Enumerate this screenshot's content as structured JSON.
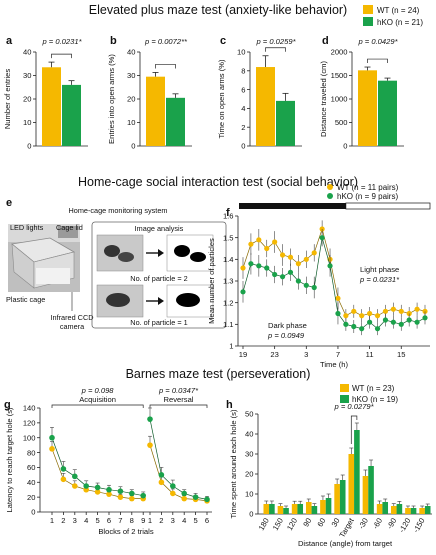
{
  "colors": {
    "wt": "#f5b800",
    "hko": "#1aa24b",
    "axis": "#222222",
    "darkbar": "#111111"
  },
  "sections": {
    "epm": "Elevated plus maze test (anxiety-like behavior)",
    "home": "Home-cage social interaction test (social behavior)",
    "barnes": "Barnes maze test (perseveration)"
  },
  "legend_top": {
    "wt": "WT (n = 24)",
    "hko": "hKO (n = 21)"
  },
  "legend_f": {
    "wt": "WT (n = 11 pairs)",
    "hko": "hKO (n = 9 pairs)"
  },
  "legend_h": {
    "wt": "WT (n = 23)",
    "hko": "hKO (n = 19)"
  },
  "panel_e": {
    "label": "e",
    "system": "Home-cage monitoring system",
    "analysis": "Image analysis",
    "led": "LED lights",
    "lid": "Cage lid",
    "cage": "Plastic cage",
    "camera1": "Infrared CCD",
    "camera2": "camera",
    "part2": "No. of particle = 2",
    "part1": "No. of particle = 1"
  },
  "chart_data": [
    {
      "panel": "a",
      "type": "bar",
      "ylabel": "Number of entries",
      "ylim": [
        0,
        40
      ],
      "yticks": [
        0,
        10,
        20,
        30,
        40
      ],
      "series": [
        {
          "name": "WT",
          "mean": 33.5,
          "sem": 2.2
        },
        {
          "name": "hKO",
          "mean": 26.0,
          "sem": 1.8
        }
      ],
      "pvalue": "p = 0.0231*"
    },
    {
      "panel": "b",
      "type": "bar",
      "ylabel": "Entries into open arms (%)",
      "ylim": [
        0,
        40
      ],
      "yticks": [
        0,
        10,
        20,
        30,
        40
      ],
      "series": [
        {
          "name": "WT",
          "mean": 29.5,
          "sem": 1.8
        },
        {
          "name": "hKO",
          "mean": 20.5,
          "sem": 1.7
        }
      ],
      "pvalue": "p = 0.0072**"
    },
    {
      "panel": "c",
      "type": "bar",
      "ylabel": "Time on open arms (%)",
      "ylim": [
        0,
        10
      ],
      "yticks": [
        0,
        2,
        4,
        6,
        8,
        10
      ],
      "series": [
        {
          "name": "WT",
          "mean": 8.4,
          "sem": 1.2
        },
        {
          "name": "hKO",
          "mean": 4.8,
          "sem": 0.8
        }
      ],
      "pvalue": "p = 0.0259*"
    },
    {
      "panel": "d",
      "type": "bar",
      "ylabel": "Distance traveled (cm)",
      "ylim": [
        0,
        2000
      ],
      "yticks": [
        0,
        500,
        1000,
        1500,
        2000
      ],
      "series": [
        {
          "name": "WT",
          "mean": 1610,
          "sem": 70
        },
        {
          "name": "hKO",
          "mean": 1390,
          "sem": 55
        }
      ],
      "pvalue": "p = 0.0429*"
    },
    {
      "panel": "f",
      "type": "line",
      "ylabel": "Mean number of particles",
      "xlabel": "Time (h)",
      "ylim": [
        1.0,
        1.6
      ],
      "yticks": [
        1.0,
        1.1,
        1.2,
        1.3,
        1.4,
        1.5,
        1.6
      ],
      "xticks": [
        19,
        23,
        3,
        7,
        11,
        15
      ],
      "x": [
        19,
        20,
        21,
        22,
        23,
        24,
        1,
        2,
        3,
        4,
        5,
        6,
        7,
        8,
        9,
        10,
        11,
        12,
        13,
        14,
        15,
        16,
        17,
        18
      ],
      "dark_phase": [
        0,
        13
      ],
      "annotations": {
        "light": "Light phase",
        "light_p": "p = 0.0231*",
        "dark": "Dark phase",
        "dark_p": "p = 0.0949"
      },
      "series": [
        {
          "name": "WT",
          "values": [
            1.36,
            1.47,
            1.49,
            1.45,
            1.48,
            1.42,
            1.41,
            1.38,
            1.4,
            1.43,
            1.54,
            1.4,
            1.22,
            1.14,
            1.16,
            1.14,
            1.15,
            1.14,
            1.16,
            1.17,
            1.16,
            1.15,
            1.17,
            1.16
          ],
          "err": [
            0.05,
            0.05,
            0.05,
            0.04,
            0.05,
            0.05,
            0.04,
            0.04,
            0.04,
            0.04,
            0.04,
            0.05,
            0.05,
            0.03,
            0.03,
            0.03,
            0.03,
            0.03,
            0.03,
            0.03,
            0.03,
            0.03,
            0.03,
            0.03
          ]
        },
        {
          "name": "hKO",
          "values": [
            1.25,
            1.38,
            1.37,
            1.36,
            1.33,
            1.32,
            1.34,
            1.3,
            1.28,
            1.27,
            1.5,
            1.37,
            1.15,
            1.1,
            1.09,
            1.08,
            1.11,
            1.08,
            1.12,
            1.11,
            1.1,
            1.12,
            1.11,
            1.13
          ],
          "err": [
            0.05,
            0.05,
            0.05,
            0.04,
            0.04,
            0.04,
            0.04,
            0.04,
            0.04,
            0.05,
            0.04,
            0.05,
            0.05,
            0.03,
            0.03,
            0.03,
            0.03,
            0.03,
            0.03,
            0.03,
            0.03,
            0.03,
            0.03,
            0.03
          ]
        }
      ]
    },
    {
      "panel": "g",
      "type": "line",
      "ylabel": "Latency to reach target hole (s)",
      "xlabel": "Blocks of 2 trials",
      "ylim": [
        0,
        140
      ],
      "yticks": [
        0,
        20,
        40,
        60,
        80,
        100,
        120,
        140
      ],
      "xticks": [
        "1",
        "2",
        "3",
        "4",
        "5",
        "6",
        "7",
        "8",
        "9",
        "1",
        "2",
        "3",
        "4",
        "5",
        "6"
      ],
      "groups": [
        {
          "label": "Acquisition",
          "p": "p = 0.098",
          "from": 0,
          "to": 8
        },
        {
          "label": "Reversal",
          "p": "p = 0.0347*",
          "from": 9,
          "to": 14
        }
      ],
      "series": [
        {
          "name": "WT",
          "values": [
            85,
            44,
            35,
            30,
            27,
            24,
            20,
            18,
            18,
            90,
            40,
            25,
            18,
            17,
            15
          ],
          "err": [
            10,
            8,
            7,
            6,
            5,
            5,
            4,
            4,
            4,
            12,
            8,
            6,
            4,
            4,
            3
          ]
        },
        {
          "name": "hKO",
          "values": [
            100,
            58,
            48,
            35,
            33,
            30,
            28,
            25,
            22,
            125,
            50,
            35,
            25,
            20,
            17
          ],
          "err": [
            14,
            10,
            9,
            7,
            6,
            6,
            6,
            5,
            5,
            15,
            10,
            8,
            5,
            5,
            4
          ]
        }
      ]
    },
    {
      "panel": "h",
      "type": "bar",
      "ylabel": "Time spent around each hole (s)",
      "xlabel": "Distance (angle) from target",
      "ylim": [
        0,
        50
      ],
      "yticks": [
        0,
        10,
        20,
        30,
        40,
        50
      ],
      "categories": [
        "180",
        "150",
        "120",
        "90",
        "60",
        "30",
        "Target",
        "-30",
        "-60",
        "-90",
        "-120",
        "-150"
      ],
      "series": [
        {
          "name": "WT",
          "values": [
            5,
            4,
            5,
            6,
            7,
            15,
            30,
            19,
            5,
            4,
            3,
            3
          ],
          "err": [
            1.5,
            1.2,
            1.4,
            1.5,
            2,
            2.5,
            3,
            3,
            1.5,
            1.2,
            1,
            1
          ]
        },
        {
          "name": "hKO",
          "values": [
            5,
            3,
            5,
            4,
            8,
            17,
            42,
            24,
            6,
            5,
            3,
            4
          ],
          "err": [
            1.5,
            1,
            1.4,
            1.2,
            2,
            2.5,
            3.5,
            3,
            1.5,
            1.3,
            1,
            1
          ]
        }
      ],
      "pvalue": "p = 0.0279*"
    }
  ]
}
